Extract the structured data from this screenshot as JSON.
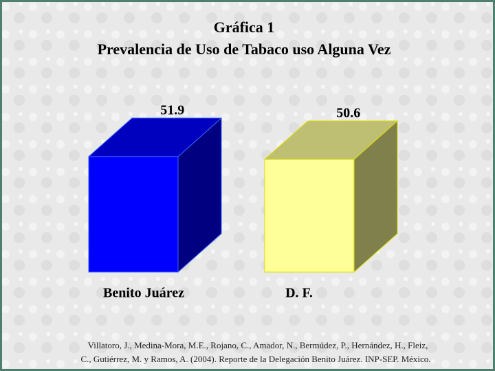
{
  "chart_data": {
    "type": "bar3d",
    "title": "Gráfica 1",
    "subtitle": "Prevalencia de Uso de Tabaco uso Alguna Vez",
    "categories": [
      "Benito Juárez",
      "D. F."
    ],
    "values": [
      51.9,
      50.6
    ],
    "colors": [
      "#0000ff",
      "#ffff99"
    ],
    "source": [
      "Villatoro, J., Medina-Mora, M.E., Rojano, C., Amador, N., Bermúdez, P., Hernández, H., Fleiz,",
      "C., Gutiérrez, M. y Ramos, A. (2004). Reporte de la Delegación Benito Juárez. INP-SEP. México."
    ]
  }
}
